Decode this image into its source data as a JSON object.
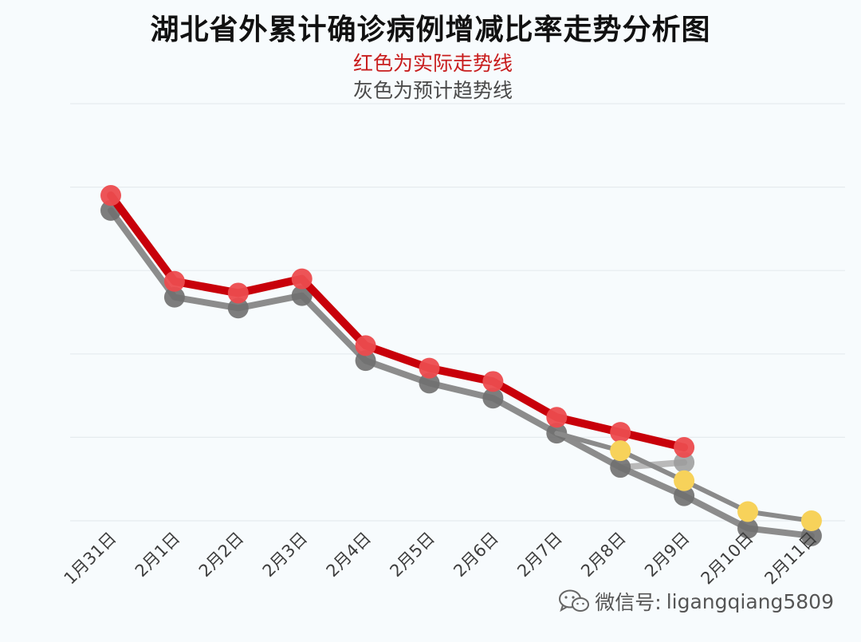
{
  "title": "湖北省外累计确诊病例增减比率走势分析图",
  "legend": {
    "actual": "红色为实际走势线",
    "forecast": "灰色为预计趋势线"
  },
  "watermark": {
    "prefix": "微信号:",
    "account": "ligangqiang5809",
    "icon": "wechat-icon"
  },
  "colors": {
    "actual": "#c8000a",
    "actual_marker": "#ec4b4e",
    "forecast": "#7f7f7f",
    "forecast_marker": "#6f6f6f",
    "forecast_point": "#f7d25a",
    "grid": "#e6ebee"
  },
  "chart_data": {
    "type": "line",
    "categories": [
      "1月31日",
      "2月1日",
      "2月2日",
      "2月3日",
      "2月4日",
      "2月5日",
      "2月6日",
      "2月7日",
      "2月8日",
      "2月9日",
      "2月10日",
      "2月11日"
    ],
    "ylim": [
      0,
      5
    ],
    "grid": true,
    "title": "湖北省外累计确诊病例增减比率走势分析图",
    "xlabel": "",
    "ylabel": "",
    "series": [
      {
        "name": "实际走势线",
        "values": [
          3.9,
          2.87,
          2.73,
          2.9,
          2.1,
          1.83,
          1.67,
          1.24,
          1.06,
          0.88,
          null,
          null
        ]
      },
      {
        "name": "预计趋势线",
        "values": [
          3.72,
          2.68,
          2.55,
          2.7,
          1.92,
          1.65,
          1.47,
          1.05,
          0.64,
          0.3,
          -0.09,
          -0.18
        ]
      },
      {
        "values": [
          null,
          null,
          null,
          null,
          null,
          null,
          null,
          null,
          null,
          0.7,
          null,
          null
        ]
      },
      {
        "values": [
          null,
          null,
          null,
          null,
          null,
          null,
          null,
          1.05,
          0.84,
          0.48,
          0.11,
          0.0
        ]
      }
    ]
  }
}
